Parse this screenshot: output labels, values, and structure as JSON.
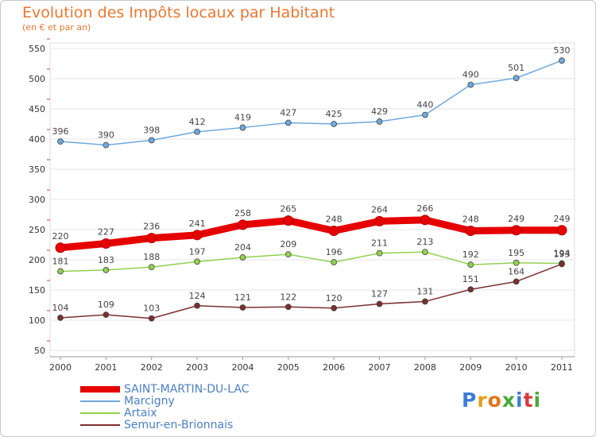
{
  "chart_data": {
    "type": "line",
    "title": "Evolution des Impôts locaux par Habitant",
    "subtitle": "(en € et par an)",
    "x": [
      "2000",
      "2001",
      "2002",
      "2003",
      "2004",
      "2005",
      "2006",
      "2007",
      "2008",
      "2009",
      "2010",
      "2011"
    ],
    "ylim": [
      50,
      550
    ],
    "yticks": [
      50,
      100,
      150,
      200,
      250,
      300,
      350,
      400,
      450,
      500,
      550
    ],
    "grid": true,
    "legend_position": "bottom-left",
    "series": [
      {
        "name": "SAINT-MARTIN-DU-LAC",
        "color": "#e60000",
        "values": [
          220,
          227,
          236,
          241,
          258,
          265,
          248,
          264,
          266,
          248,
          249,
          249
        ]
      },
      {
        "name": "Marcigny",
        "color": "#6fa8dc",
        "values": [
          396,
          390,
          398,
          412,
          419,
          427,
          425,
          429,
          440,
          490,
          501,
          530
        ]
      },
      {
        "name": "Artaix",
        "color": "#92d050",
        "values": [
          181,
          183,
          188,
          197,
          204,
          209,
          196,
          211,
          213,
          192,
          195,
          194
        ]
      },
      {
        "name": "Semur-en-Brionnais",
        "color": "#7b2f2f",
        "values": [
          104,
          109,
          103,
          124,
          121,
          122,
          120,
          127,
          131,
          151,
          164,
          193
        ]
      }
    ]
  },
  "brand": "Proxiti"
}
